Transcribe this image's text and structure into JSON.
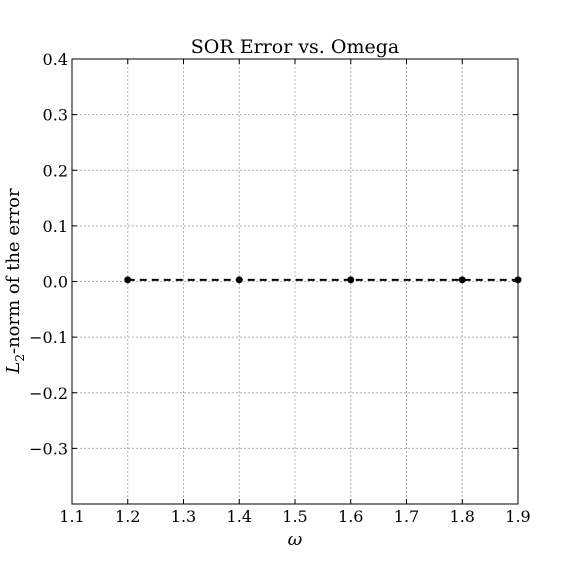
{
  "chart_data": {
    "type": "line",
    "title": "SOR Error vs. Omega",
    "xlabel": "ω",
    "ylabel": {
      "symbol": "L",
      "subscript": "2",
      "text": "-norm of the error"
    },
    "xlim": [
      1.1,
      1.9
    ],
    "ylim": [
      -0.4,
      0.4
    ],
    "xticks": [
      "1.1",
      "1.2",
      "1.3",
      "1.4",
      "1.5",
      "1.6",
      "1.7",
      "1.8",
      "1.9"
    ],
    "yticks": [
      "−0.3",
      "−0.2",
      "−0.1",
      "0.0",
      "0.1",
      "0.2",
      "0.3",
      "0.4"
    ],
    "grid": true,
    "series": [
      {
        "line_style": "dashed",
        "marker": "circle",
        "color": "#000000",
        "x": [
          1.2,
          1.4,
          1.6,
          1.8,
          1.9
        ],
        "y": [
          0.003,
          0.003,
          0.003,
          0.003,
          0.003
        ]
      }
    ]
  }
}
